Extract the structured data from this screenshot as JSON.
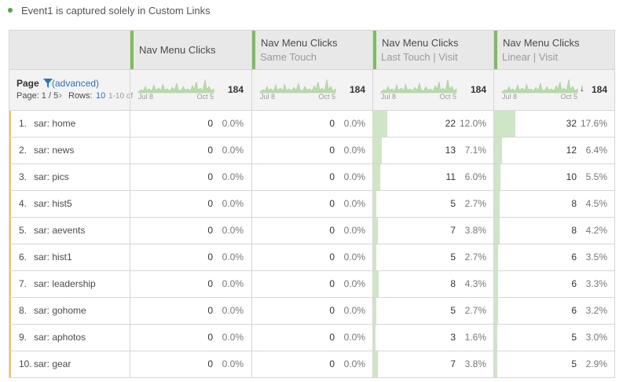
{
  "note": "Event1 is captured solely in Custom Links",
  "table": {
    "columns": [
      {
        "title": "Nav Menu Clicks",
        "start": "Jul 8",
        "end": "Oct 5",
        "total": 184
      },
      {
        "title": "Nav Menu Clicks",
        "subtitle": "Same Touch",
        "start": "Jul 8",
        "end": "Oct 5",
        "total": 184
      },
      {
        "title": "Nav Menu Clicks",
        "subtitle": "Last Touch | Visit",
        "start": "Jul 8",
        "end": "Oct 5",
        "total": 184
      },
      {
        "title": "Nav Menu Clicks",
        "subtitle": "Linear | Visit",
        "start": "Jul 8",
        "end": "Oct 5",
        "total": 184
      }
    ],
    "dimension": "Page",
    "filter": "(advanced)",
    "page_label": "Page: 1 / 5",
    "rows_label": "Rows:",
    "rows_value": 10,
    "range_label": "1-10 of",
    "rows": [
      {
        "index": "1.",
        "name": "sar: home",
        "cells": [
          {
            "value": 0,
            "percent": "0.0%"
          },
          {
            "value": 0,
            "percent": "0.0%"
          },
          {
            "value": 22,
            "percent": "12.0%"
          },
          {
            "value": 32,
            "percent": "17.6%"
          }
        ]
      },
      {
        "index": "2.",
        "name": "sar: news",
        "cells": [
          {
            "value": 0,
            "percent": "0.0%"
          },
          {
            "value": 0,
            "percent": "0.0%"
          },
          {
            "value": 13,
            "percent": "7.1%"
          },
          {
            "value": 12,
            "percent": "6.4%"
          }
        ]
      },
      {
        "index": "3.",
        "name": "sar: pics",
        "cells": [
          {
            "value": 0,
            "percent": "0.0%"
          },
          {
            "value": 0,
            "percent": "0.0%"
          },
          {
            "value": 11,
            "percent": "6.0%"
          },
          {
            "value": 10,
            "percent": "5.5%"
          }
        ]
      },
      {
        "index": "4.",
        "name": "sar: hist5",
        "cells": [
          {
            "value": 0,
            "percent": "0.0%"
          },
          {
            "value": 0,
            "percent": "0.0%"
          },
          {
            "value": 5,
            "percent": "2.7%"
          },
          {
            "value": 8,
            "percent": "4.5%"
          }
        ]
      },
      {
        "index": "5.",
        "name": "sar: aevents",
        "cells": [
          {
            "value": 0,
            "percent": "0.0%"
          },
          {
            "value": 0,
            "percent": "0.0%"
          },
          {
            "value": 7,
            "percent": "3.8%"
          },
          {
            "value": 8,
            "percent": "4.2%"
          }
        ]
      },
      {
        "index": "6.",
        "name": "sar: hist1",
        "cells": [
          {
            "value": 0,
            "percent": "0.0%"
          },
          {
            "value": 0,
            "percent": "0.0%"
          },
          {
            "value": 5,
            "percent": "2.7%"
          },
          {
            "value": 6,
            "percent": "3.5%"
          }
        ]
      },
      {
        "index": "7.",
        "name": "sar: leadership",
        "cells": [
          {
            "value": 0,
            "percent": "0.0%"
          },
          {
            "value": 0,
            "percent": "0.0%"
          },
          {
            "value": 8,
            "percent": "4.3%"
          },
          {
            "value": 6,
            "percent": "3.3%"
          }
        ]
      },
      {
        "index": "8.",
        "name": "sar: gohome",
        "cells": [
          {
            "value": 0,
            "percent": "0.0%"
          },
          {
            "value": 0,
            "percent": "0.0%"
          },
          {
            "value": 5,
            "percent": "2.7%"
          },
          {
            "value": 6,
            "percent": "3.2%"
          }
        ]
      },
      {
        "index": "9.",
        "name": "sar: aphotos",
        "cells": [
          {
            "value": 0,
            "percent": "0.0%"
          },
          {
            "value": 0,
            "percent": "0.0%"
          },
          {
            "value": 3,
            "percent": "1.6%"
          },
          {
            "value": 5,
            "percent": "3.0%"
          }
        ]
      },
      {
        "index": "10.",
        "name": "sar: gear",
        "cells": [
          {
            "value": 0,
            "percent": "0.0%"
          },
          {
            "value": 0,
            "percent": "0.0%"
          },
          {
            "value": 7,
            "percent": "3.8%"
          },
          {
            "value": 5,
            "percent": "2.9%"
          }
        ]
      }
    ]
  }
}
